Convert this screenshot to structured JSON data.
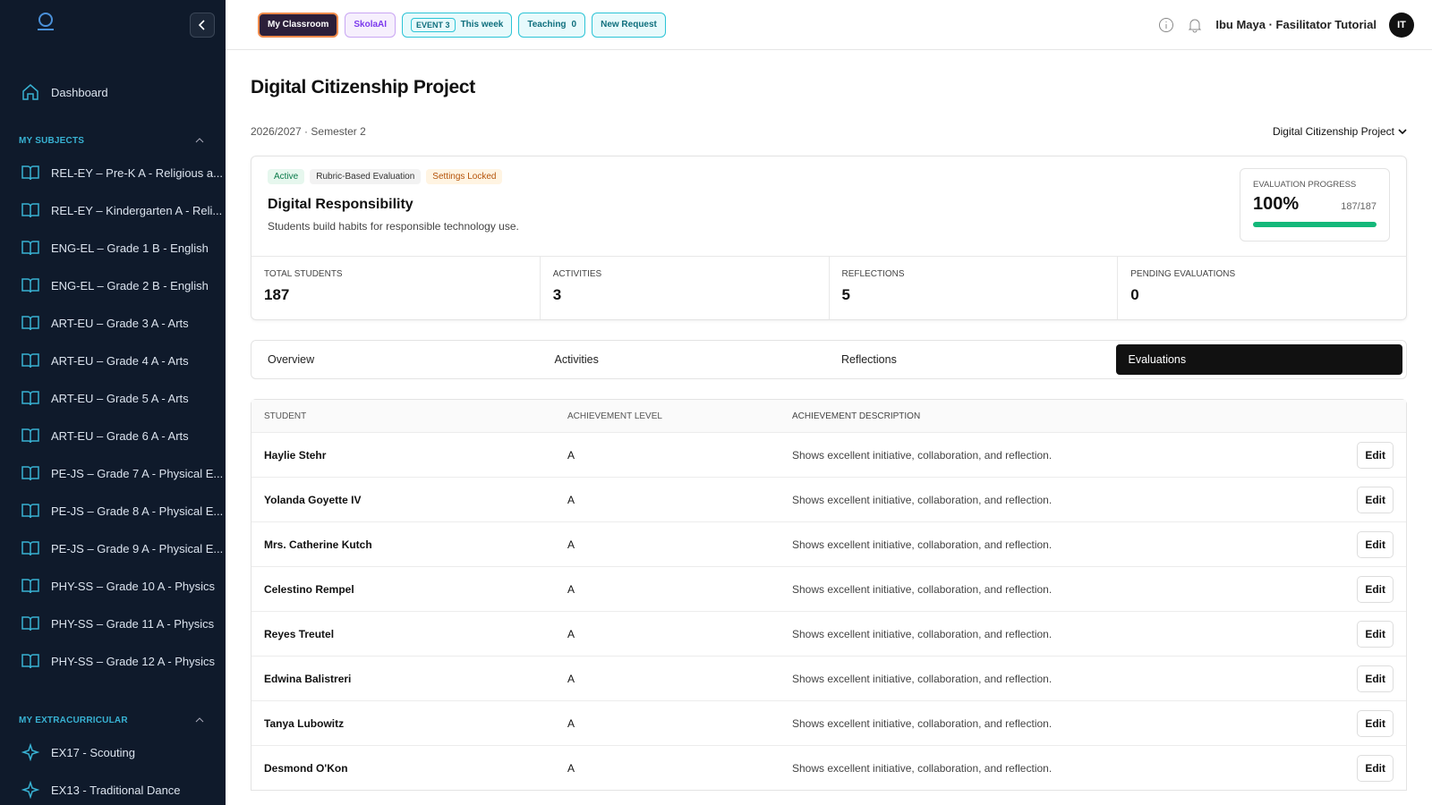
{
  "sidebar": {
    "dashboard": "Dashboard",
    "subjects_heading": "MY SUBJECTS",
    "subjects": [
      "REL-EY – Pre-K A - Religious a...",
      "REL-EY – Kindergarten A - Reli...",
      "ENG-EL – Grade 1 B - English",
      "ENG-EL – Grade 2 B - English",
      "ART-EU – Grade 3 A - Arts",
      "ART-EU – Grade 4 A - Arts",
      "ART-EU – Grade 5 A - Arts",
      "ART-EU – Grade 6 A - Arts",
      "PE-JS – Grade 7 A - Physical E...",
      "PE-JS – Grade 8 A - Physical E...",
      "PE-JS – Grade 9 A - Physical E...",
      "PHY-SS – Grade 10 A - Physics",
      "PHY-SS – Grade 11 A - Physics",
      "PHY-SS – Grade 12 A - Physics"
    ],
    "extracurricular_heading": "MY EXTRACURRICULAR",
    "extracurricular": [
      "EX17 - Scouting",
      "EX13 - Traditional Dance"
    ]
  },
  "topbar": {
    "my_classroom": "My Classroom",
    "skola_ai": "SkolaAI",
    "event": "EVENT 3",
    "event_period": "This week",
    "teaching": "Teaching",
    "teaching_count": "0",
    "new_request": "New Request",
    "user": "Ibu Maya · Fasilitator Tutorial",
    "avatar": "IT"
  },
  "header": {
    "title": "Digital Citizenship Project",
    "term": "2026/2027 · Semester 2",
    "selector": "Digital Citizenship Project"
  },
  "card": {
    "badges": [
      "Active",
      "Rubric-Based Evaluation",
      "Settings Locked"
    ],
    "heading": "Digital Responsibility",
    "description": "Students build habits for responsible technology use.",
    "progress_label": "EVALUATION PROGRESS",
    "progress_percent": "100%",
    "progress_count": "187/187",
    "stats": [
      {
        "label": "TOTAL STUDENTS",
        "value": "187"
      },
      {
        "label": "ACTIVITIES",
        "value": "3"
      },
      {
        "label": "REFLECTIONS",
        "value": "5"
      },
      {
        "label": "PENDING EVALUATIONS",
        "value": "0"
      }
    ]
  },
  "tabs": [
    "Overview",
    "Activities",
    "Reflections",
    "Evaluations"
  ],
  "table": {
    "headers": [
      "STUDENT",
      "ACHIEVEMENT LEVEL",
      "ACHIEVEMENT DESCRIPTION"
    ],
    "action": "Edit",
    "rows": [
      [
        "Haylie Stehr",
        "A",
        "Shows excellent initiative, collaboration, and reflection."
      ],
      [
        "Yolanda Goyette IV",
        "A",
        "Shows excellent initiative, collaboration, and reflection."
      ],
      [
        "Mrs. Catherine Kutch",
        "A",
        "Shows excellent initiative, collaboration, and reflection."
      ],
      [
        "Celestino Rempel",
        "A",
        "Shows excellent initiative, collaboration, and reflection."
      ],
      [
        "Reyes Treutel",
        "A",
        "Shows excellent initiative, collaboration, and reflection."
      ],
      [
        "Edwina Balistreri",
        "A",
        "Shows excellent initiative, collaboration, and reflection."
      ],
      [
        "Tanya Lubowitz",
        "A",
        "Shows excellent initiative, collaboration, and reflection."
      ],
      [
        "Desmond O'Kon",
        "A",
        "Shows excellent initiative, collaboration, and reflection."
      ]
    ]
  }
}
